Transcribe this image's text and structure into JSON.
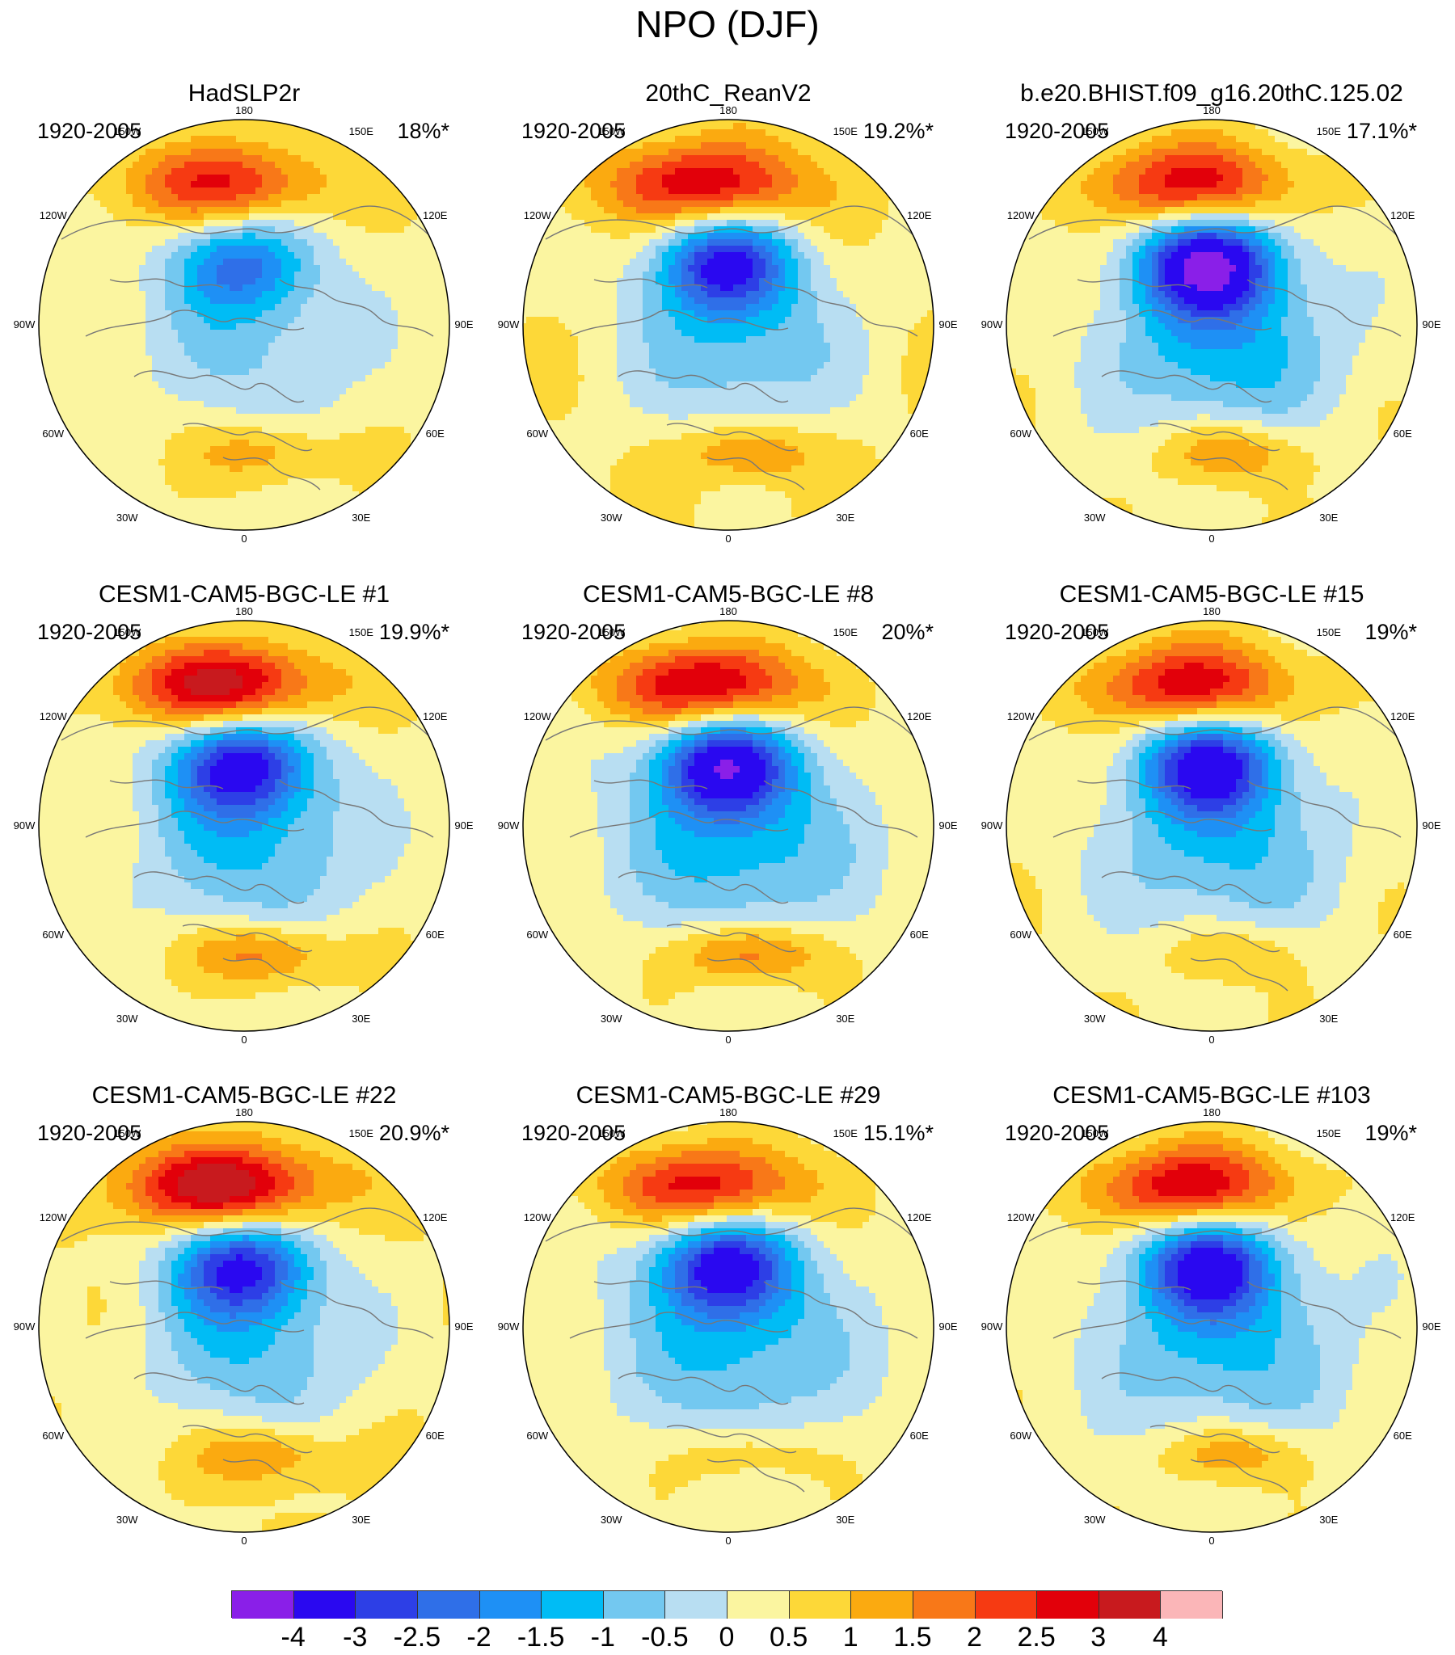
{
  "title": "NPO (DJF)",
  "palette": [
    "#8a1fe8",
    "#2a08f0",
    "#2d3fe6",
    "#2f6fe8",
    "#1e90f5",
    "#00bcf5",
    "#73c8f0",
    "#b8def2",
    "#fbf5a0",
    "#fdd838",
    "#fbaa10",
    "#f87818",
    "#f63a12",
    "#e2000a",
    "#c81a1e",
    "#fbb6b8"
  ],
  "colorbar": {
    "labels": [
      "-4",
      "-3",
      "-2.5",
      "-2",
      "-1.5",
      "-1",
      "-0.5",
      "0",
      "0.5",
      "1",
      "1.5",
      "2",
      "2.5",
      "3",
      "4"
    ]
  },
  "longitudes": {
    "top": "180",
    "bottom": "0",
    "l150": "150W",
    "r150": "150E",
    "l120": "120W",
    "r120": "120E",
    "l90": "90W",
    "r90": "90E",
    "l60": "60W",
    "r60": "60E",
    "l30": "30W",
    "r30": "30E"
  },
  "panels": [
    {
      "title": "HadSLP2r",
      "period": "1920-2005",
      "pct": "18%*",
      "pac": 2.2,
      "arc": -2.2,
      "atl": 1.1,
      "wpos": 0.4
    },
    {
      "title": "20thC_ReanV2",
      "period": "1920-2005",
      "pct": "19.2%*",
      "pac": 2.6,
      "arc": -3.2,
      "atl": 1.3,
      "wpos": 0.5
    },
    {
      "title": "b.e20.BHIST.f09_g16.20thC.125.02",
      "period": "1920-2005",
      "pct": "17.1%*",
      "pac": 2.5,
      "arc": -4.0,
      "atl": 1.4,
      "wpos": 0.4
    },
    {
      "title": "CESM1-CAM5-BGC-LE #1",
      "period": "1920-2005",
      "pct": "19.9%*",
      "pac": 3.0,
      "arc": -3.3,
      "atl": 1.6,
      "wpos": 0.4
    },
    {
      "title": "CESM1-CAM5-BGC-LE #8",
      "period": "1920-2005",
      "pct": "20%*",
      "pac": 3.0,
      "arc": -3.6,
      "atl": 1.8,
      "wpos": 0.3
    },
    {
      "title": "CESM1-CAM5-BGC-LE #15",
      "period": "1920-2005",
      "pct": "19%*",
      "pac": 2.6,
      "arc": -3.4,
      "atl": 0.9,
      "wpos": 0.4
    },
    {
      "title": "CESM1-CAM5-BGC-LE #22",
      "period": "1920-2005",
      "pct": "20.9%*",
      "pac": 3.2,
      "arc": -3.2,
      "atl": 1.3,
      "wpos": 0.5
    },
    {
      "title": "CESM1-CAM5-BGC-LE #29",
      "period": "1920-2005",
      "pct": "15.1%*",
      "pac": 2.6,
      "arc": -3.3,
      "atl": 0.9,
      "wpos": 0.3
    },
    {
      "title": "CESM1-CAM5-BGC-LE #103",
      "period": "1920-2005",
      "pct": "19%*",
      "pac": 2.8,
      "arc": -3.3,
      "atl": 1.3,
      "wpos": 0.3
    }
  ]
}
